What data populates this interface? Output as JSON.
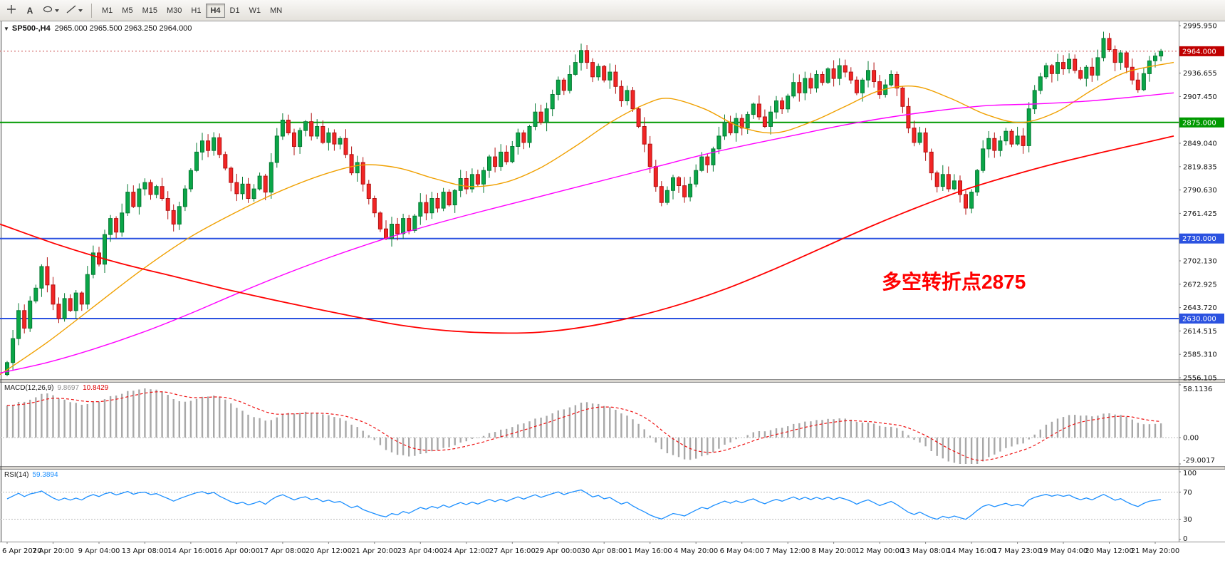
{
  "icons": {
    "symbol_dropdown": "▼"
  },
  "toolbar": {
    "text_tool_label": "A",
    "timeframes": [
      {
        "label": "M1",
        "active": false
      },
      {
        "label": "M5",
        "active": false
      },
      {
        "label": "M15",
        "active": false
      },
      {
        "label": "M30",
        "active": false
      },
      {
        "label": "H1",
        "active": false
      },
      {
        "label": "H4",
        "active": true
      },
      {
        "label": "D1",
        "active": false
      },
      {
        "label": "W1",
        "active": false
      },
      {
        "label": "MN",
        "active": false
      }
    ]
  },
  "chart": {
    "title": {
      "symbol": "SP500-,H4",
      "ohlc": "2965.000 2965.500 2963.250 2964.000"
    },
    "annotation": {
      "text": "多空转折点2875",
      "color": "#ff0000"
    },
    "price_axis": {
      "labels": [
        {
          "text": "2995.950",
          "value": 2995.95,
          "style": "plain"
        },
        {
          "text": "2964.000",
          "value": 2964.0,
          "style": "tag",
          "color": "#c00000"
        },
        {
          "text": "2936.655",
          "value": 2936.655,
          "style": "plain"
        },
        {
          "text": "2907.450",
          "value": 2907.45,
          "style": "plain"
        },
        {
          "text": "2875.000",
          "value": 2875.0,
          "style": "tag",
          "color": "#009900"
        },
        {
          "text": "2849.040",
          "value": 2849.04,
          "style": "plain"
        },
        {
          "text": "2819.835",
          "value": 2819.835,
          "style": "plain"
        },
        {
          "text": "2790.630",
          "value": 2790.63,
          "style": "plain"
        },
        {
          "text": "2761.425",
          "value": 2761.425,
          "style": "plain"
        },
        {
          "text": "2730.000",
          "value": 2730.0,
          "style": "tag",
          "color": "#2b52e0"
        },
        {
          "text": "2702.130",
          "value": 2702.13,
          "style": "plain"
        },
        {
          "text": "2672.925",
          "value": 2672.925,
          "style": "plain"
        },
        {
          "text": "2643.720",
          "value": 2643.72,
          "style": "plain"
        },
        {
          "text": "2630.000",
          "value": 2630.0,
          "style": "tag",
          "color": "#2b52e0"
        },
        {
          "text": "2614.515",
          "value": 2614.515,
          "style": "plain"
        },
        {
          "text": "2585.310",
          "value": 2585.31,
          "style": "plain"
        },
        {
          "text": "2556.105",
          "value": 2556.105,
          "style": "plain"
        }
      ]
    }
  },
  "macd": {
    "label": "MACD(12,26,9)",
    "value1": "9.8697",
    "value2": "10.8429",
    "axis": [
      {
        "text": "58.1136",
        "value": 58.1136
      },
      {
        "text": "0.00",
        "value": 0
      },
      {
        "text": "-29.0017",
        "value": -29.0017
      }
    ]
  },
  "rsi": {
    "label": "RSI(14)",
    "value": "59.3894",
    "axis": [
      {
        "text": "100",
        "value": 100
      },
      {
        "text": "70",
        "value": 70
      },
      {
        "text": "30",
        "value": 30
      },
      {
        "text": "0",
        "value": 0
      }
    ],
    "levels": [
      70,
      30
    ]
  },
  "chart_data": {
    "type": "candlestick",
    "title": "SP500-,H4",
    "symbol": "SP500-",
    "timeframe": "H4",
    "last_ohlc": {
      "open": 2965.0,
      "high": 2965.5,
      "low": 2963.25,
      "close": 2964.0
    },
    "price_range": [
      2556.105,
      2995.95
    ],
    "candles_per_label": 8,
    "x_labels": [
      "6 Apr 2020",
      "7 Apr 20:00",
      "9 Apr 04:00",
      "13 Apr 08:00",
      "14 Apr 16:00",
      "16 Apr 00:00",
      "17 Apr 08:00",
      "20 Apr 12:00",
      "21 Apr 20:00",
      "23 Apr 04:00",
      "24 Apr 12:00",
      "27 Apr 16:00",
      "29 Apr 00:00",
      "30 Apr 08:00",
      "1 May 16:00",
      "4 May 20:00",
      "6 May 04:00",
      "7 May 12:00",
      "8 May 20:00",
      "12 May 00:00",
      "13 May 08:00",
      "14 May 16:00",
      "17 May 23:00",
      "19 May 04:00",
      "20 May 12:00",
      "21 May 20:00"
    ],
    "first_open": 2560,
    "closes": [
      2575,
      2605,
      2640,
      2618,
      2652,
      2668,
      2695,
      2672,
      2648,
      2630,
      2655,
      2640,
      2662,
      2648,
      2685,
      2712,
      2698,
      2735,
      2755,
      2738,
      2762,
      2788,
      2770,
      2792,
      2800,
      2785,
      2795,
      2780,
      2765,
      2748,
      2770,
      2792,
      2815,
      2838,
      2852,
      2840,
      2856,
      2835,
      2818,
      2800,
      2786,
      2798,
      2780,
      2792,
      2808,
      2788,
      2825,
      2858,
      2878,
      2862,
      2845,
      2865,
      2876,
      2858,
      2870,
      2850,
      2862,
      2848,
      2855,
      2835,
      2812,
      2825,
      2798,
      2780,
      2762,
      2742,
      2730,
      2748,
      2736,
      2755,
      2740,
      2758,
      2775,
      2762,
      2780,
      2768,
      2788,
      2772,
      2790,
      2805,
      2792,
      2810,
      2798,
      2815,
      2832,
      2820,
      2838,
      2826,
      2845,
      2862,
      2850,
      2870,
      2888,
      2875,
      2892,
      2910,
      2928,
      2915,
      2935,
      2950,
      2965,
      2950,
      2932,
      2945,
      2928,
      2938,
      2920,
      2902,
      2915,
      2892,
      2870,
      2848,
      2820,
      2795,
      2775,
      2790,
      2806,
      2796,
      2782,
      2798,
      2815,
      2832,
      2822,
      2842,
      2858,
      2875,
      2862,
      2880,
      2868,
      2885,
      2898,
      2882,
      2870,
      2888,
      2902,
      2892,
      2908,
      2925,
      2912,
      2930,
      2918,
      2935,
      2925,
      2942,
      2930,
      2946,
      2938,
      2928,
      2912,
      2928,
      2940,
      2926,
      2910,
      2922,
      2935,
      2918,
      2895,
      2868,
      2850,
      2862,
      2838,
      2812,
      2795,
      2810,
      2792,
      2802,
      2785,
      2768,
      2788,
      2815,
      2842,
      2855,
      2840,
      2852,
      2864,
      2848,
      2858,
      2846,
      2892,
      2915,
      2932,
      2946,
      2936,
      2950,
      2942,
      2954,
      2940,
      2930,
      2944,
      2934,
      2956,
      2980,
      2966,
      2950,
      2962,
      2944,
      2928,
      2916,
      2936,
      2952,
      2958,
      2964
    ],
    "horizontal_levels": [
      {
        "value": 2875.0,
        "color": "#009900",
        "label": "2875.000"
      },
      {
        "value": 2730.0,
        "color": "#2b52e0",
        "label": "2730.000"
      },
      {
        "value": 2630.0,
        "color": "#2b52e0",
        "label": "2630.000"
      }
    ],
    "current_price": {
      "value": 2964.0,
      "label": "2964.000",
      "color": "#c00000"
    },
    "moving_averages": [
      {
        "name": "fast-ma",
        "color": "#f0a000",
        "points": [
          [
            0,
            2560
          ],
          [
            0.04,
            2600
          ],
          [
            0.08,
            2645
          ],
          [
            0.12,
            2690
          ],
          [
            0.16,
            2730
          ],
          [
            0.2,
            2762
          ],
          [
            0.24,
            2790
          ],
          [
            0.28,
            2812
          ],
          [
            0.31,
            2822
          ],
          [
            0.34,
            2818
          ],
          [
            0.37,
            2805
          ],
          [
            0.4,
            2795
          ],
          [
            0.43,
            2800
          ],
          [
            0.46,
            2818
          ],
          [
            0.49,
            2845
          ],
          [
            0.52,
            2875
          ],
          [
            0.55,
            2898
          ],
          [
            0.57,
            2905
          ],
          [
            0.6,
            2892
          ],
          [
            0.63,
            2870
          ],
          [
            0.66,
            2862
          ],
          [
            0.69,
            2875
          ],
          [
            0.72,
            2895
          ],
          [
            0.75,
            2915
          ],
          [
            0.78,
            2920
          ],
          [
            0.81,
            2905
          ],
          [
            0.84,
            2885
          ],
          [
            0.87,
            2875
          ],
          [
            0.9,
            2888
          ],
          [
            0.93,
            2915
          ],
          [
            0.96,
            2938
          ],
          [
            1,
            2950
          ]
        ]
      },
      {
        "name": "mid-ma",
        "color": "#ff00ff",
        "points": [
          [
            0,
            2562
          ],
          [
            0.04,
            2575
          ],
          [
            0.08,
            2592
          ],
          [
            0.12,
            2612
          ],
          [
            0.16,
            2635
          ],
          [
            0.2,
            2660
          ],
          [
            0.24,
            2684
          ],
          [
            0.28,
            2706
          ],
          [
            0.32,
            2726
          ],
          [
            0.36,
            2744
          ],
          [
            0.4,
            2760
          ],
          [
            0.44,
            2775
          ],
          [
            0.48,
            2790
          ],
          [
            0.52,
            2805
          ],
          [
            0.56,
            2820
          ],
          [
            0.6,
            2835
          ],
          [
            0.64,
            2848
          ],
          [
            0.68,
            2860
          ],
          [
            0.72,
            2872
          ],
          [
            0.76,
            2882
          ],
          [
            0.8,
            2890
          ],
          [
            0.84,
            2896
          ],
          [
            0.88,
            2898
          ],
          [
            0.92,
            2901
          ],
          [
            0.96,
            2906
          ],
          [
            1,
            2912
          ]
        ]
      },
      {
        "name": "slow-ma",
        "color": "#ff0000",
        "points": [
          [
            0,
            2748
          ],
          [
            0.05,
            2722
          ],
          [
            0.1,
            2700
          ],
          [
            0.15,
            2682
          ],
          [
            0.2,
            2664
          ],
          [
            0.25,
            2648
          ],
          [
            0.3,
            2633
          ],
          [
            0.34,
            2622
          ],
          [
            0.38,
            2615
          ],
          [
            0.42,
            2612
          ],
          [
            0.46,
            2613
          ],
          [
            0.5,
            2620
          ],
          [
            0.54,
            2632
          ],
          [
            0.58,
            2648
          ],
          [
            0.62,
            2668
          ],
          [
            0.66,
            2692
          ],
          [
            0.7,
            2718
          ],
          [
            0.74,
            2744
          ],
          [
            0.78,
            2768
          ],
          [
            0.82,
            2790
          ],
          [
            0.86,
            2808
          ],
          [
            0.9,
            2824
          ],
          [
            0.94,
            2838
          ],
          [
            0.97,
            2848
          ],
          [
            1,
            2858
          ]
        ]
      }
    ],
    "indicators": [
      {
        "name": "MACD",
        "params": "12,26,9",
        "values": [
          9.8697,
          10.8429
        ],
        "axis_range": [
          -29.0017,
          58.1136
        ]
      },
      {
        "name": "RSI",
        "params": "14",
        "value": 59.3894,
        "axis_range": [
          0,
          100
        ],
        "levels": [
          70,
          30
        ]
      }
    ]
  }
}
